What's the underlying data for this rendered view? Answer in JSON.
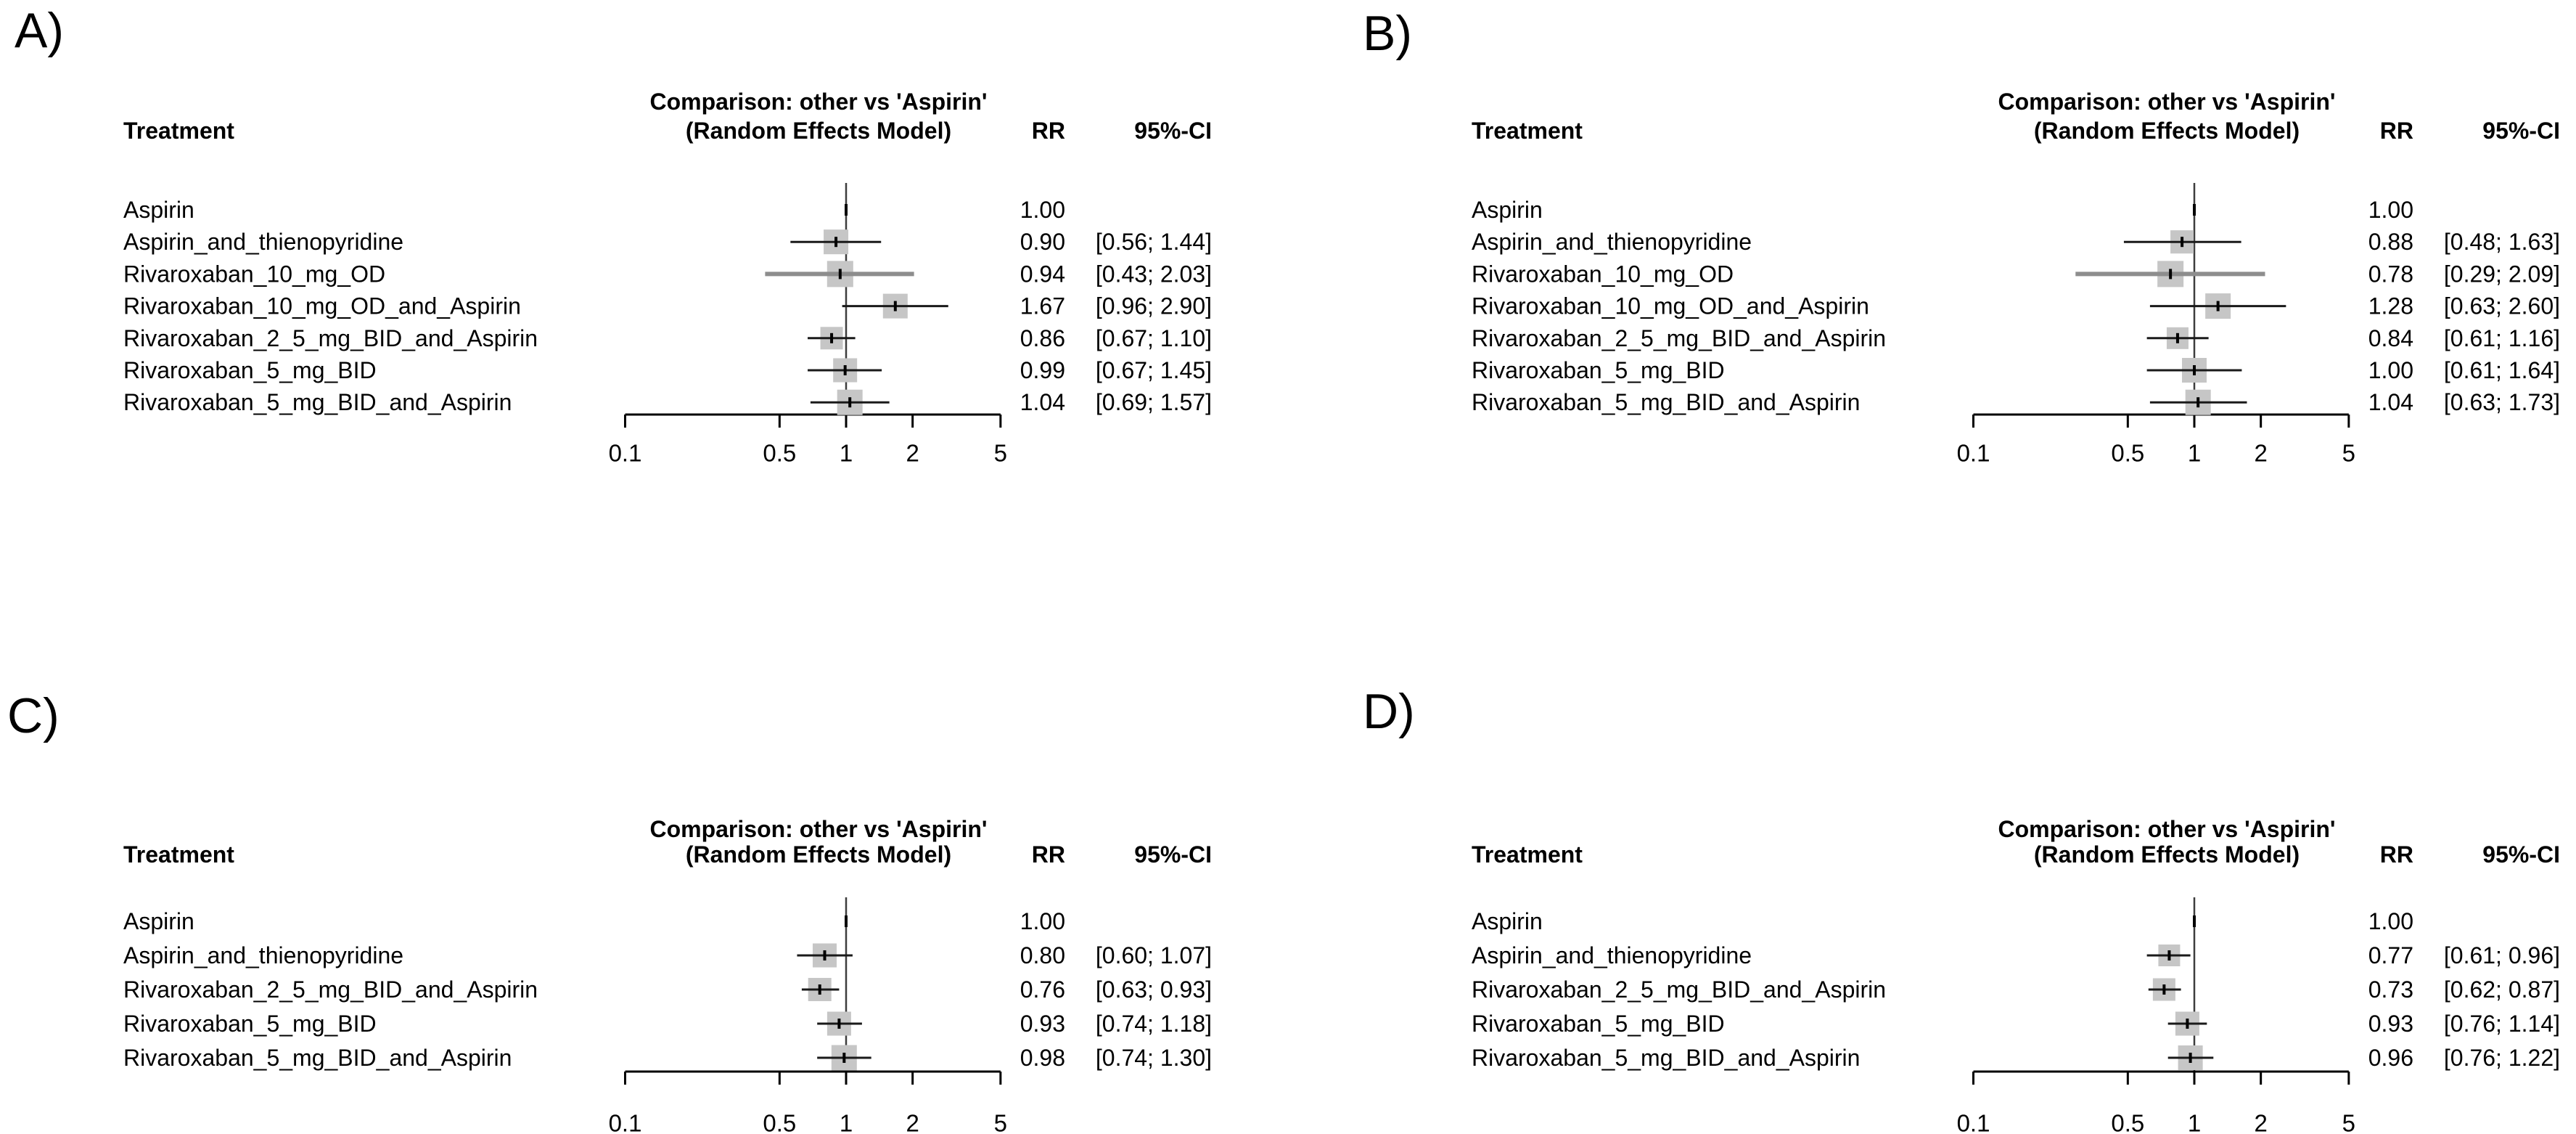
{
  "colors": {
    "square": "#c6c6c6",
    "ci_line": "#1a1a1a",
    "thick_ci_line": "#8d8d8d",
    "reference_line": "#3d3d3d",
    "axis": "#000000",
    "marker": "#000000",
    "text": "#000000",
    "background": "#ffffff"
  },
  "chart_data": [
    {
      "type": "forest",
      "panel_label": "A)",
      "title": "Comparison: other vs 'Aspirin'",
      "subtitle": "(Random Effects Model)",
      "treatment_header": "Treatment",
      "effect_header": "RR",
      "ci_header": "95%-CI",
      "x_scale": "log",
      "x_range": [
        0.1,
        5
      ],
      "reference_line": 1,
      "x_ticks": [
        "0.1",
        "0.5",
        "1",
        "2",
        "5"
      ],
      "rows": [
        {
          "treatment": "Aspirin",
          "rr": 1.0,
          "rr_text": "1.00",
          "ci_text": "",
          "reference": true
        },
        {
          "treatment": "Aspirin_and_thienopyridine",
          "rr": 0.9,
          "lower": 0.56,
          "upper": 1.44,
          "rr_text": "0.90",
          "ci_text": "[0.56; 1.44]",
          "marker_size": 34
        },
        {
          "treatment": "Rivaroxaban_10_mg_OD",
          "rr": 0.94,
          "lower": 0.43,
          "upper": 2.03,
          "rr_text": "0.94",
          "ci_text": "[0.43; 2.03]",
          "marker_size": 36,
          "ci_style": "thick"
        },
        {
          "treatment": "Rivaroxaban_10_mg_OD_and_Aspirin",
          "rr": 1.67,
          "lower": 0.96,
          "upper": 2.9,
          "rr_text": "1.67",
          "ci_text": "[0.96; 2.90]",
          "marker_size": 34
        },
        {
          "treatment": "Rivaroxaban_2_5_mg_BID_and_Aspirin",
          "rr": 0.86,
          "lower": 0.67,
          "upper": 1.1,
          "rr_text": "0.86",
          "ci_text": "[0.67; 1.10]",
          "marker_size": 31
        },
        {
          "treatment": "Rivaroxaban_5_mg_BID",
          "rr": 0.99,
          "lower": 0.67,
          "upper": 1.45,
          "rr_text": "0.99",
          "ci_text": "[0.67; 1.45]",
          "marker_size": 33
        },
        {
          "treatment": "Rivaroxaban_5_mg_BID_and_Aspirin",
          "rr": 1.04,
          "lower": 0.69,
          "upper": 1.57,
          "rr_text": "1.04",
          "ci_text": "[0.69; 1.57]",
          "marker_size": 35
        }
      ]
    },
    {
      "type": "forest",
      "panel_label": "B)",
      "title": "Comparison: other vs 'Aspirin'",
      "subtitle": "(Random Effects Model)",
      "treatment_header": "Treatment",
      "effect_header": "RR",
      "ci_header": "95%-CI",
      "x_scale": "log",
      "x_range": [
        0.1,
        5
      ],
      "reference_line": 1,
      "x_ticks": [
        "0.1",
        "0.5",
        "1",
        "2",
        "5"
      ],
      "rows": [
        {
          "treatment": "Aspirin",
          "rr": 1.0,
          "rr_text": "1.00",
          "ci_text": "",
          "reference": true
        },
        {
          "treatment": "Aspirin_and_thienopyridine",
          "rr": 0.88,
          "lower": 0.48,
          "upper": 1.63,
          "rr_text": "0.88",
          "ci_text": "[0.48; 1.63]",
          "marker_size": 32
        },
        {
          "treatment": "Rivaroxaban_10_mg_OD",
          "rr": 0.78,
          "lower": 0.29,
          "upper": 2.09,
          "rr_text": "0.78",
          "ci_text": "[0.29; 2.09]",
          "marker_size": 36,
          "ci_style": "thick"
        },
        {
          "treatment": "Rivaroxaban_10_mg_OD_and_Aspirin",
          "rr": 1.28,
          "lower": 0.63,
          "upper": 2.6,
          "rr_text": "1.28",
          "ci_text": "[0.63; 2.60]",
          "marker_size": 35
        },
        {
          "treatment": "Rivaroxaban_2_5_mg_BID_and_Aspirin",
          "rr": 0.84,
          "lower": 0.61,
          "upper": 1.16,
          "rr_text": "0.84",
          "ci_text": "[0.61; 1.16]",
          "marker_size": 30
        },
        {
          "treatment": "Rivaroxaban_5_mg_BID",
          "rr": 1.0,
          "lower": 0.61,
          "upper": 1.64,
          "rr_text": "1.00",
          "ci_text": "[0.61; 1.64]",
          "marker_size": 34
        },
        {
          "treatment": "Rivaroxaban_5_mg_BID_and_Aspirin",
          "rr": 1.04,
          "lower": 0.63,
          "upper": 1.73,
          "rr_text": "1.04",
          "ci_text": "[0.63; 1.73]",
          "marker_size": 35
        }
      ]
    },
    {
      "type": "forest",
      "panel_label": "C)",
      "title": "Comparison: other vs 'Aspirin'",
      "subtitle": "(Random Effects Model)",
      "treatment_header": "Treatment",
      "effect_header": "RR",
      "ci_header": "95%-CI",
      "x_scale": "log",
      "x_range": [
        0.1,
        5
      ],
      "reference_line": 1,
      "x_ticks": [
        "0.1",
        "0.5",
        "1",
        "2",
        "5"
      ],
      "rows": [
        {
          "treatment": "Aspirin",
          "rr": 1.0,
          "rr_text": "1.00",
          "ci_text": "",
          "reference": true
        },
        {
          "treatment": "Aspirin_and_thienopyridine",
          "rr": 0.8,
          "lower": 0.6,
          "upper": 1.07,
          "rr_text": "0.80",
          "ci_text": "[0.60; 1.07]",
          "marker_size": 33
        },
        {
          "treatment": "Rivaroxaban_2_5_mg_BID_and_Aspirin",
          "rr": 0.76,
          "lower": 0.63,
          "upper": 0.93,
          "rr_text": "0.76",
          "ci_text": "[0.63; 0.93]",
          "marker_size": 32
        },
        {
          "treatment": "Rivaroxaban_5_mg_BID",
          "rr": 0.93,
          "lower": 0.74,
          "upper": 1.18,
          "rr_text": "0.93",
          "ci_text": "[0.74; 1.18]",
          "marker_size": 33
        },
        {
          "treatment": "Rivaroxaban_5_mg_BID_and_Aspirin",
          "rr": 0.98,
          "lower": 0.74,
          "upper": 1.3,
          "rr_text": "0.98",
          "ci_text": "[0.74; 1.30]",
          "marker_size": 35
        }
      ]
    },
    {
      "type": "forest",
      "panel_label": "D)",
      "title": "Comparison: other vs 'Aspirin'",
      "subtitle": "(Random Effects Model)",
      "treatment_header": "Treatment",
      "effect_header": "RR",
      "ci_header": "95%-CI",
      "x_scale": "log",
      "x_range": [
        0.1,
        5
      ],
      "reference_line": 1,
      "x_ticks": [
        "0.1",
        "0.5",
        "1",
        "2",
        "5"
      ],
      "rows": [
        {
          "treatment": "Aspirin",
          "rr": 1.0,
          "rr_text": "1.00",
          "ci_text": "",
          "reference": true
        },
        {
          "treatment": "Aspirin_and_thienopyridine",
          "rr": 0.77,
          "lower": 0.61,
          "upper": 0.96,
          "rr_text": "0.77",
          "ci_text": "[0.61; 0.96]",
          "marker_size": 30
        },
        {
          "treatment": "Rivaroxaban_2_5_mg_BID_and_Aspirin",
          "rr": 0.73,
          "lower": 0.62,
          "upper": 0.87,
          "rr_text": "0.73",
          "ci_text": "[0.62; 0.87]",
          "marker_size": 31
        },
        {
          "treatment": "Rivaroxaban_5_mg_BID",
          "rr": 0.93,
          "lower": 0.76,
          "upper": 1.14,
          "rr_text": "0.93",
          "ci_text": "[0.76; 1.14]",
          "marker_size": 33
        },
        {
          "treatment": "Rivaroxaban_5_mg_BID_and_Aspirin",
          "rr": 0.96,
          "lower": 0.76,
          "upper": 1.22,
          "rr_text": "0.96",
          "ci_text": "[0.76; 1.22]",
          "marker_size": 34
        }
      ]
    }
  ]
}
